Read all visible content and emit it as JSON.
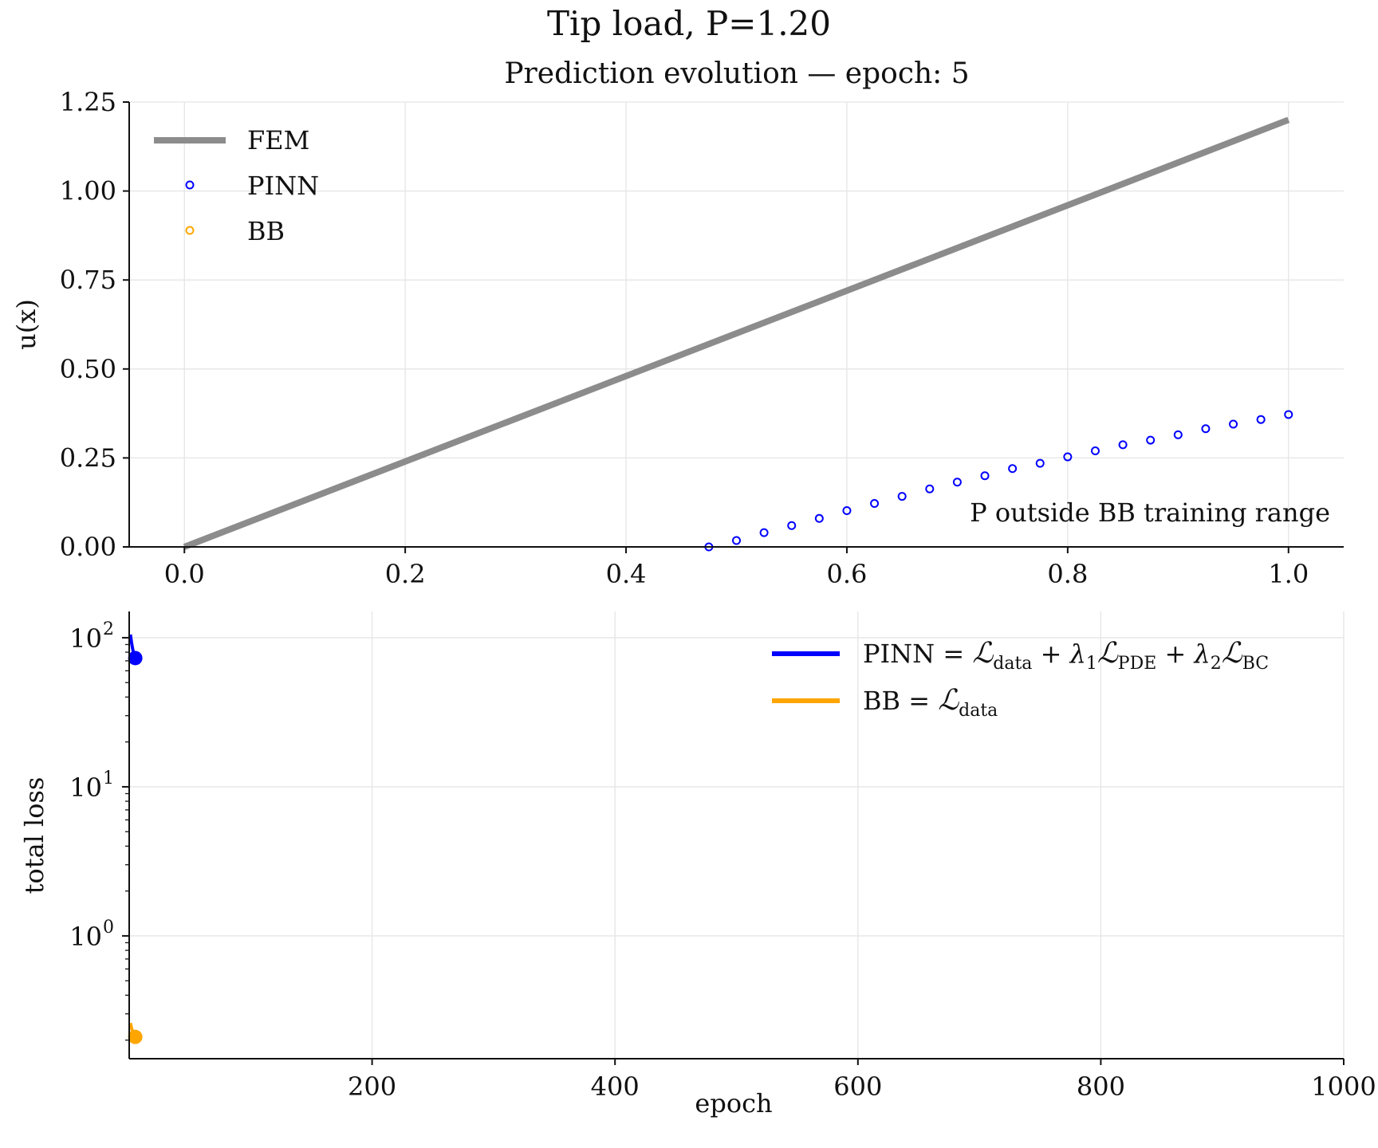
{
  "figure": {
    "suptitle": "Tip load, P=1.20"
  },
  "chart_data": [
    {
      "type": "line",
      "title": "Prediction evolution — epoch: 5",
      "xlabel": "",
      "ylabel": "u(x)",
      "xlim": [
        -0.05,
        1.05
      ],
      "ylim": [
        0.0,
        1.25
      ],
      "xticks": [
        "0.0",
        "0.2",
        "0.4",
        "0.6",
        "0.8",
        "1.0"
      ],
      "yticks": [
        "0.00",
        "0.25",
        "0.50",
        "0.75",
        "1.00",
        "1.25"
      ],
      "grid": true,
      "legend_position": "top-left",
      "annotation": "P outside BB training range",
      "series": [
        {
          "name": "FEM",
          "style": "line",
          "color": "#8c8c8c",
          "x": [
            0.0,
            1.0
          ],
          "y": [
            0.0,
            1.2
          ]
        },
        {
          "name": "PINN",
          "style": "hollow-markers",
          "color": "#0000ff",
          "x": [
            0.475,
            0.5,
            0.525,
            0.55,
            0.575,
            0.6,
            0.625,
            0.65,
            0.675,
            0.7,
            0.725,
            0.75,
            0.775,
            0.8,
            0.825,
            0.85,
            0.875,
            0.9,
            0.925,
            0.95,
            0.975,
            1.0
          ],
          "y": [
            0.0,
            0.018,
            0.04,
            0.06,
            0.08,
            0.102,
            0.122,
            0.142,
            0.163,
            0.182,
            0.2,
            0.22,
            0.235,
            0.253,
            0.27,
            0.287,
            0.3,
            0.315,
            0.332,
            0.345,
            0.358,
            0.372
          ]
        },
        {
          "name": "BB",
          "style": "hollow-markers",
          "color": "#ffa500",
          "x": [],
          "y": []
        }
      ]
    },
    {
      "type": "line",
      "title": "",
      "xlabel": "epoch",
      "ylabel": "total loss",
      "xscale": "linear",
      "yscale": "log",
      "xlim": [
        0,
        1000
      ],
      "ylim": [
        0.15,
        150
      ],
      "xticks": [
        "200",
        "400",
        "600",
        "800",
        "1000"
      ],
      "yticks": [
        "10",
        "10",
        "10"
      ],
      "ytick_exponents": [
        "2",
        "1",
        "0"
      ],
      "grid": true,
      "legend_position": "top-right",
      "series": [
        {
          "name": "PINN",
          "legend_formula": {
            "lhs": "PINN",
            "eq": " = ",
            "l1": "data",
            "l2": "PDE",
            "l3": "BC",
            "lam1": "1",
            "lam2": "2"
          },
          "color": "#0000ff",
          "epochs": [
            1,
            2,
            3,
            4,
            5
          ],
          "values": [
            105,
            92,
            83,
            77,
            73
          ]
        },
        {
          "name": "BB",
          "legend_formula": {
            "lhs": "BB",
            "eq": " = ",
            "l1": "data"
          },
          "color": "#ffa500",
          "epochs": [
            1,
            2,
            3,
            4,
            5
          ],
          "values": [
            0.26,
            0.24,
            0.225,
            0.215,
            0.21
          ]
        }
      ]
    }
  ]
}
